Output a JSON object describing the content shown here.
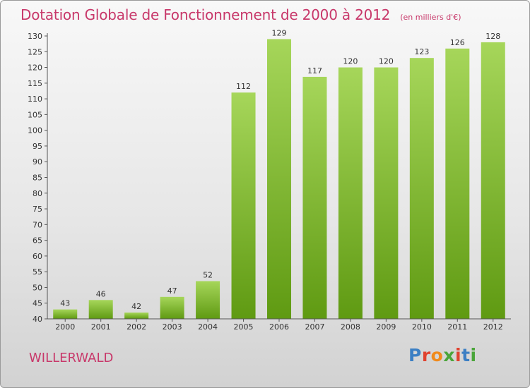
{
  "header": {
    "title": "Dotation Globale de Fonctionnement de 2000 à 2012",
    "subtitle": "(en milliers d'€)"
  },
  "footer": {
    "place": "WILLERWALD",
    "logo": [
      "P",
      "r",
      "o",
      "x",
      "i",
      "t",
      "i"
    ]
  },
  "colors": {
    "title": "#c8386a",
    "bar_light": "#a6d65a",
    "bar_dark": "#5f9a12",
    "axis": "#555555"
  },
  "chart_data": {
    "type": "bar",
    "categories": [
      "2000",
      "2001",
      "2002",
      "2003",
      "2004",
      "2005",
      "2006",
      "2007",
      "2008",
      "2009",
      "2010",
      "2011",
      "2012"
    ],
    "values": [
      43,
      46,
      42,
      47,
      52,
      112,
      129,
      117,
      120,
      120,
      123,
      126,
      128
    ],
    "data_labels": [
      "43",
      "46",
      "42",
      "47",
      "52",
      "112",
      "129",
      "117",
      "120",
      "120",
      "123",
      "126",
      "128"
    ],
    "title": "Dotation Globale de Fonctionnement de 2000 à 2012",
    "xlabel": "",
    "ylabel": "",
    "ylim": [
      40,
      130
    ],
    "yticks": [
      40,
      45,
      50,
      55,
      60,
      65,
      70,
      75,
      80,
      85,
      90,
      95,
      100,
      105,
      110,
      115,
      120,
      125,
      130
    ],
    "grid": false,
    "legend": "none"
  }
}
